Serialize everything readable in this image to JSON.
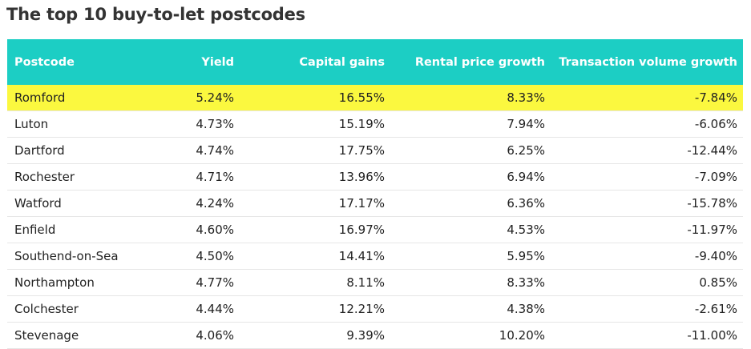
{
  "title": "The top 10 buy-to-let postcodes",
  "colors": {
    "header_bg": "#1ccec4",
    "header_text": "#ffffff",
    "highlight_row": "#fbf83f"
  },
  "chart_data": {
    "type": "table",
    "columns": [
      "Postcode",
      "Yield",
      "Capital gains",
      "Rental price growth",
      "Transaction volume growth"
    ],
    "rows": [
      [
        "Romford",
        "5.24%",
        "16.55%",
        "8.33%",
        "-7.84%"
      ],
      [
        "Luton",
        "4.73%",
        "15.19%",
        "7.94%",
        "-6.06%"
      ],
      [
        "Dartford",
        "4.74%",
        "17.75%",
        "6.25%",
        "-12.44%"
      ],
      [
        "Rochester",
        "4.71%",
        "13.96%",
        "6.94%",
        "-7.09%"
      ],
      [
        "Watford",
        "4.24%",
        "17.17%",
        "6.36%",
        "-15.78%"
      ],
      [
        "Enfield",
        "4.60%",
        "16.97%",
        "4.53%",
        "-11.97%"
      ],
      [
        "Southend-on-Sea",
        "4.50%",
        "14.41%",
        "5.95%",
        "-9.40%"
      ],
      [
        "Northampton",
        "4.77%",
        "8.11%",
        "8.33%",
        "0.85%"
      ],
      [
        "Colchester",
        "4.44%",
        "12.21%",
        "4.38%",
        "-2.61%"
      ],
      [
        "Stevenage",
        "4.06%",
        "9.39%",
        "10.20%",
        "-11.00%"
      ]
    ],
    "highlighted_row": 0
  }
}
